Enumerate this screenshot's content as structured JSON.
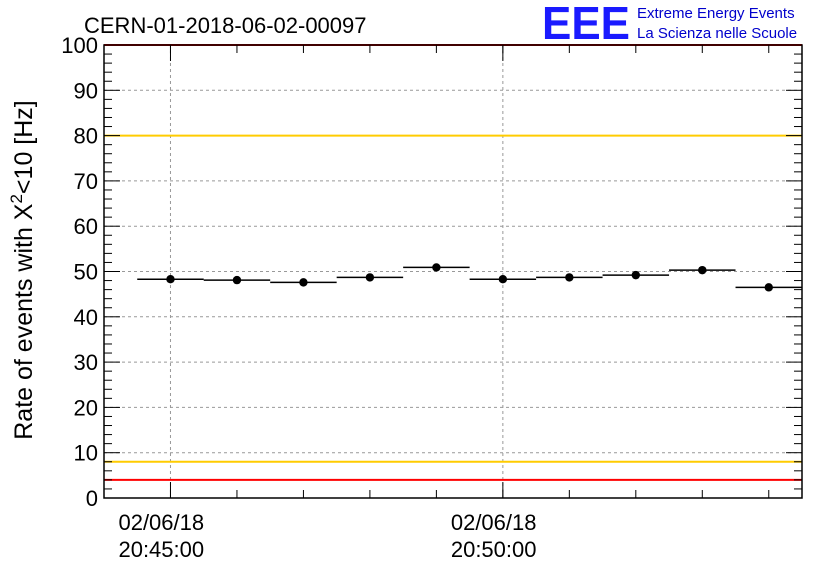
{
  "chart_data": {
    "type": "scatter",
    "title": "CERN-01-2018-06-02-00097",
    "ylabel_main": "Rate of events with X",
    "ylabel_sup": "2",
    "ylabel_tail": "<10 [Hz]",
    "ylim": [
      0,
      100
    ],
    "y_ticks": [
      "0",
      "10",
      "20",
      "30",
      "40",
      "50",
      "60",
      "70",
      "80",
      "90",
      "100"
    ],
    "x_tick_labels": [
      {
        "date": "02/06/18",
        "time": "20:45:00"
      },
      {
        "date": "02/06/18",
        "time": "20:50:00"
      }
    ],
    "grid": true,
    "reference_lines": [
      {
        "value": 100,
        "color": "#ff0000"
      },
      {
        "value": 80,
        "color": "#ffcc00"
      },
      {
        "value": 8,
        "color": "#ffcc00"
      },
      {
        "value": 4,
        "color": "#ff0000"
      }
    ],
    "series": [
      {
        "color": "#000000",
        "points": [
          {
            "x_start": "20:44:30",
            "x_end": "20:45:30",
            "y": 48.3
          },
          {
            "x_start": "20:45:30",
            "x_end": "20:46:30",
            "y": 48.1
          },
          {
            "x_start": "20:46:30",
            "x_end": "20:47:30",
            "y": 47.6
          },
          {
            "x_start": "20:47:30",
            "x_end": "20:48:30",
            "y": 48.7
          },
          {
            "x_start": "20:48:30",
            "x_end": "20:49:30",
            "y": 50.9
          },
          {
            "x_start": "20:49:30",
            "x_end": "20:50:30",
            "y": 48.3
          },
          {
            "x_start": "20:50:30",
            "x_end": "20:51:30",
            "y": 48.7
          },
          {
            "x_start": "20:51:30",
            "x_end": "20:52:30",
            "y": 49.2
          },
          {
            "x_start": "20:52:30",
            "x_end": "20:53:30",
            "y": 50.3
          },
          {
            "x_start": "20:53:30",
            "x_end": "20:54:30",
            "y": 46.5
          }
        ]
      }
    ]
  },
  "logo": {
    "mark": "EEE",
    "line1": "Extreme Energy Events",
    "line2": "La Scienza nelle Scuole",
    "color": "#1a1aff"
  }
}
